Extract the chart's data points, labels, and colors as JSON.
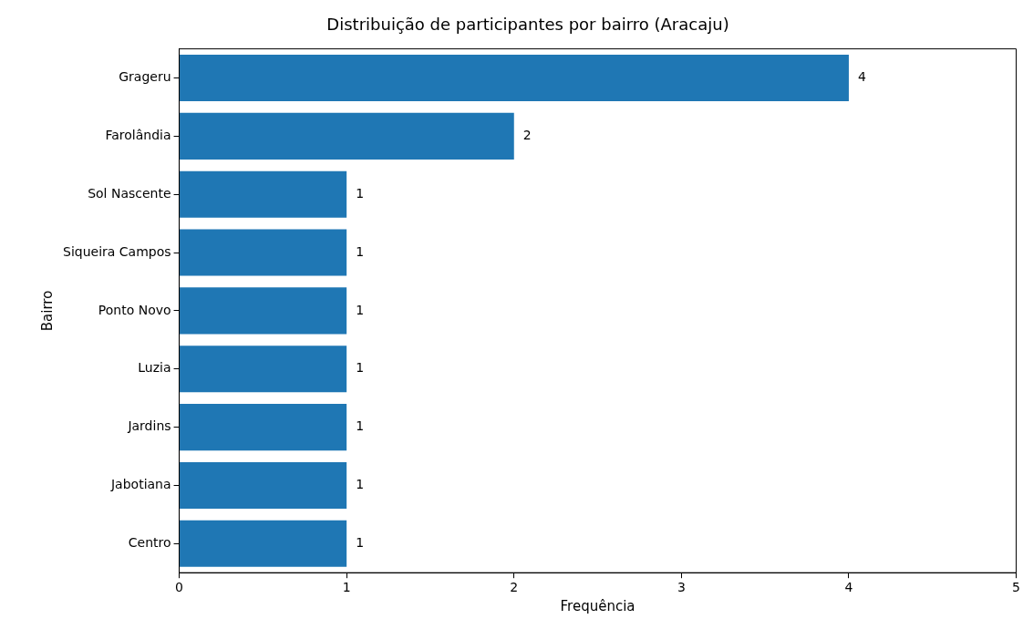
{
  "chart_data": {
    "type": "bar",
    "orientation": "horizontal",
    "title": "Distribuição de participantes por bairro (Aracaju)",
    "xlabel": "Frequência",
    "ylabel": "Bairro",
    "categories": [
      "Grageru",
      "Farolândia",
      "Sol Nascente",
      "Siqueira Campos",
      "Ponto Novo",
      "Luzia",
      "Jardins",
      "Jabotiana",
      "Centro"
    ],
    "values": [
      4,
      2,
      1,
      1,
      1,
      1,
      1,
      1,
      1
    ],
    "color": "#1f77b4",
    "xlim": [
      0,
      5
    ],
    "xticks": [
      0,
      1,
      2,
      3,
      4,
      5
    ],
    "grid": false,
    "legend": false,
    "data_labels": true
  }
}
